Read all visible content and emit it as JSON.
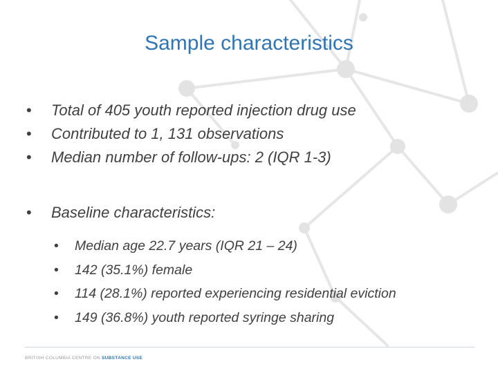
{
  "slide": {
    "title": "Sample characteristics",
    "bullets": [
      "Total of 405 youth reported injection drug use",
      "Contributed to 1, 131 observations",
      "Median number of follow-ups: 2 (IQR 1-3)"
    ],
    "baseline_heading": "Baseline characteristics:",
    "baseline_items": [
      "Median age 22.7 years (IQR 21 – 24)",
      "142 (35.1%) female",
      "114 (28.1%) reported experiencing residential eviction",
      "149 (36.8%) youth reported syringe sharing"
    ]
  },
  "footer": {
    "prefix": "BRITISH COLUMBIA CENTRE ON",
    "emphasis": "SUBSTANCE USE"
  },
  "colors": {
    "title": "#2e75b6",
    "text": "#404040",
    "network": "#e3e3e3"
  }
}
